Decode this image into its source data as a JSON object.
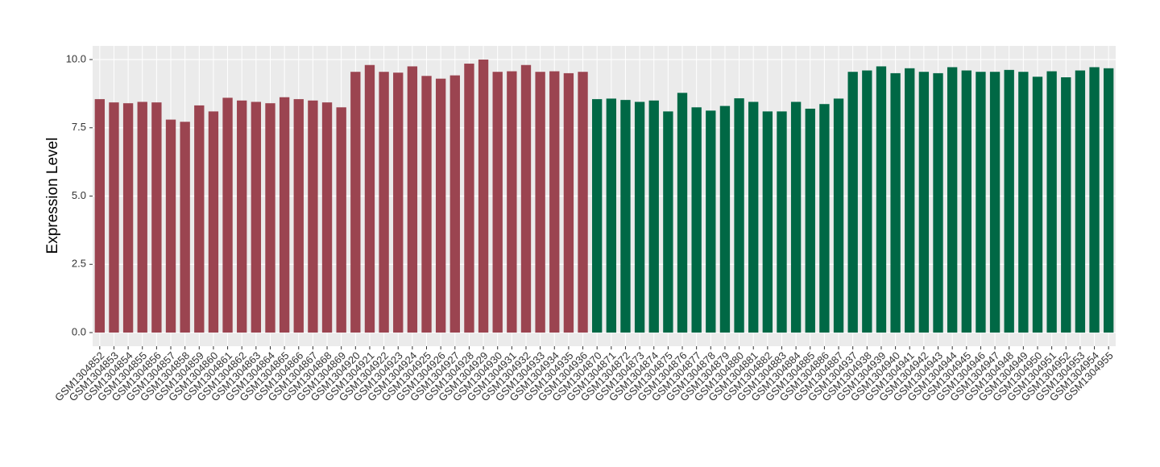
{
  "chart_data": {
    "type": "bar",
    "y_label": "Expression Level",
    "categories": [
      "GSM1304852",
      "GSM1304853",
      "GSM1304854",
      "GSM1304855",
      "GSM1304856",
      "GSM1304857",
      "GSM1304858",
      "GSM1304859",
      "GSM1304860",
      "GSM1304861",
      "GSM1304862",
      "GSM1304863",
      "GSM1304864",
      "GSM1304865",
      "GSM1304866",
      "GSM1304867",
      "GSM1304868",
      "GSM1304869",
      "GSM1304920",
      "GSM1304921",
      "GSM1304922",
      "GSM1304923",
      "GSM1304924",
      "GSM1304925",
      "GSM1304926",
      "GSM1304927",
      "GSM1304928",
      "GSM1304929",
      "GSM1304930",
      "GSM1304931",
      "GSM1304932",
      "GSM1304933",
      "GSM1304934",
      "GSM1304935",
      "GSM1304936",
      "GSM1304870",
      "GSM1304871",
      "GSM1304872",
      "GSM1304873",
      "GSM1304874",
      "GSM1304875",
      "GSM1304876",
      "GSM1304877",
      "GSM1304878",
      "GSM1304879",
      "GSM1304880",
      "GSM1304881",
      "GSM1304882",
      "GSM1304883",
      "GSM1304884",
      "GSM1304885",
      "GSM1304886",
      "GSM1304887",
      "GSM1304937",
      "GSM1304938",
      "GSM1304939",
      "GSM1304940",
      "GSM1304941",
      "GSM1304942",
      "GSM1304943",
      "GSM1304944",
      "GSM1304945",
      "GSM1304946",
      "GSM1304947",
      "GSM1304948",
      "GSM1304949",
      "GSM1304950",
      "GSM1304951",
      "GSM1304952",
      "GSM1304953",
      "GSM1304954",
      "GSM1304955"
    ],
    "values": [
      8.55,
      8.43,
      8.4,
      8.45,
      8.43,
      7.8,
      7.72,
      8.32,
      8.1,
      8.6,
      8.5,
      8.45,
      8.4,
      8.62,
      8.55,
      8.5,
      8.43,
      8.25,
      9.55,
      9.8,
      9.55,
      9.52,
      9.75,
      9.4,
      9.3,
      9.42,
      9.85,
      10.0,
      9.55,
      9.57,
      9.8,
      9.55,
      9.57,
      9.5,
      9.55,
      8.55,
      8.57,
      8.52,
      8.45,
      8.5,
      8.1,
      8.78,
      8.25,
      8.13,
      8.3,
      8.58,
      8.45,
      8.1,
      8.1,
      8.45,
      8.2,
      8.37,
      8.57,
      9.55,
      9.6,
      9.75,
      9.5,
      9.68,
      9.55,
      9.5,
      9.72,
      9.6,
      9.55,
      9.55,
      9.62,
      9.55,
      9.37,
      9.57,
      9.35,
      9.6,
      9.72,
      9.68
    ],
    "colors": [
      "#9b4450",
      "#9b4450",
      "#9b4450",
      "#9b4450",
      "#9b4450",
      "#9b4450",
      "#9b4450",
      "#9b4450",
      "#9b4450",
      "#9b4450",
      "#9b4450",
      "#9b4450",
      "#9b4450",
      "#9b4450",
      "#9b4450",
      "#9b4450",
      "#9b4450",
      "#9b4450",
      "#9b4450",
      "#9b4450",
      "#9b4450",
      "#9b4450",
      "#9b4450",
      "#9b4450",
      "#9b4450",
      "#9b4450",
      "#9b4450",
      "#9b4450",
      "#9b4450",
      "#9b4450",
      "#9b4450",
      "#9b4450",
      "#9b4450",
      "#9b4450",
      "#9b4450",
      "#006845",
      "#006845",
      "#006845",
      "#006845",
      "#006845",
      "#006845",
      "#006845",
      "#006845",
      "#006845",
      "#006845",
      "#006845",
      "#006845",
      "#006845",
      "#006845",
      "#006845",
      "#006845",
      "#006845",
      "#006845",
      "#006845",
      "#006845",
      "#006845",
      "#006845",
      "#006845",
      "#006845",
      "#006845",
      "#006845",
      "#006845",
      "#006845",
      "#006845",
      "#006845",
      "#006845",
      "#006845",
      "#006845",
      "#006845",
      "#006845",
      "#006845",
      "#006845"
    ],
    "ylim": [
      -0.5,
      10.5
    ],
    "yticks": [
      {
        "value": 0,
        "label": "0.0"
      },
      {
        "value": 2.5,
        "label": "2.5"
      },
      {
        "value": 5,
        "label": "5.0"
      },
      {
        "value": 7.5,
        "label": "7.5"
      },
      {
        "value": 10,
        "label": "10.0"
      }
    ],
    "grid": true
  }
}
